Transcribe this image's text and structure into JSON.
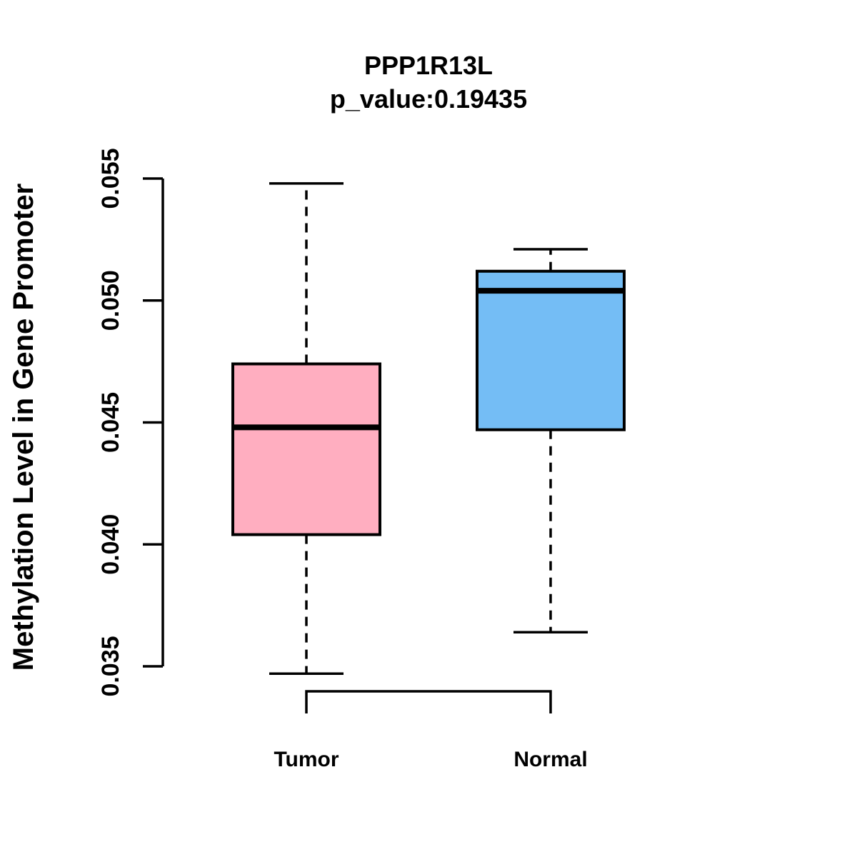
{
  "chart_data": {
    "type": "boxplot",
    "title": "PPP1R13L",
    "subtitle": "p_value:0.19435",
    "p_value": "0.19435",
    "gene": "PPP1R13L",
    "ylabel": "Methylation Level in Gene Promoter",
    "xlabel": "",
    "ylim": [
      0.0335,
      0.0555
    ],
    "yticks": [
      0.035,
      0.04,
      0.045,
      0.05,
      0.055
    ],
    "ytick_labels": [
      "0.035",
      "0.040",
      "0.045",
      "0.050",
      "0.055"
    ],
    "grid": false,
    "legend_position": "none",
    "categories": [
      "Tumor",
      "Normal"
    ],
    "groups": [
      {
        "label": "Tumor",
        "fill_color": "#FFAEC0",
        "whisker_low": 0.0347,
        "q1": 0.0404,
        "median": 0.0448,
        "q3": 0.0474,
        "whisker_high": 0.0548
      },
      {
        "label": "Normal",
        "fill_color": "#74BDF5",
        "whisker_low": 0.0364,
        "q1": 0.0447,
        "median": 0.0504,
        "q3": 0.0512,
        "whisker_high": 0.0521
      }
    ],
    "colors": {
      "box_border": "#000000",
      "median_line": "#000000",
      "whisker": "#000000",
      "axis": "#000000",
      "text": "#000000",
      "background": "#FFFFFF"
    }
  }
}
